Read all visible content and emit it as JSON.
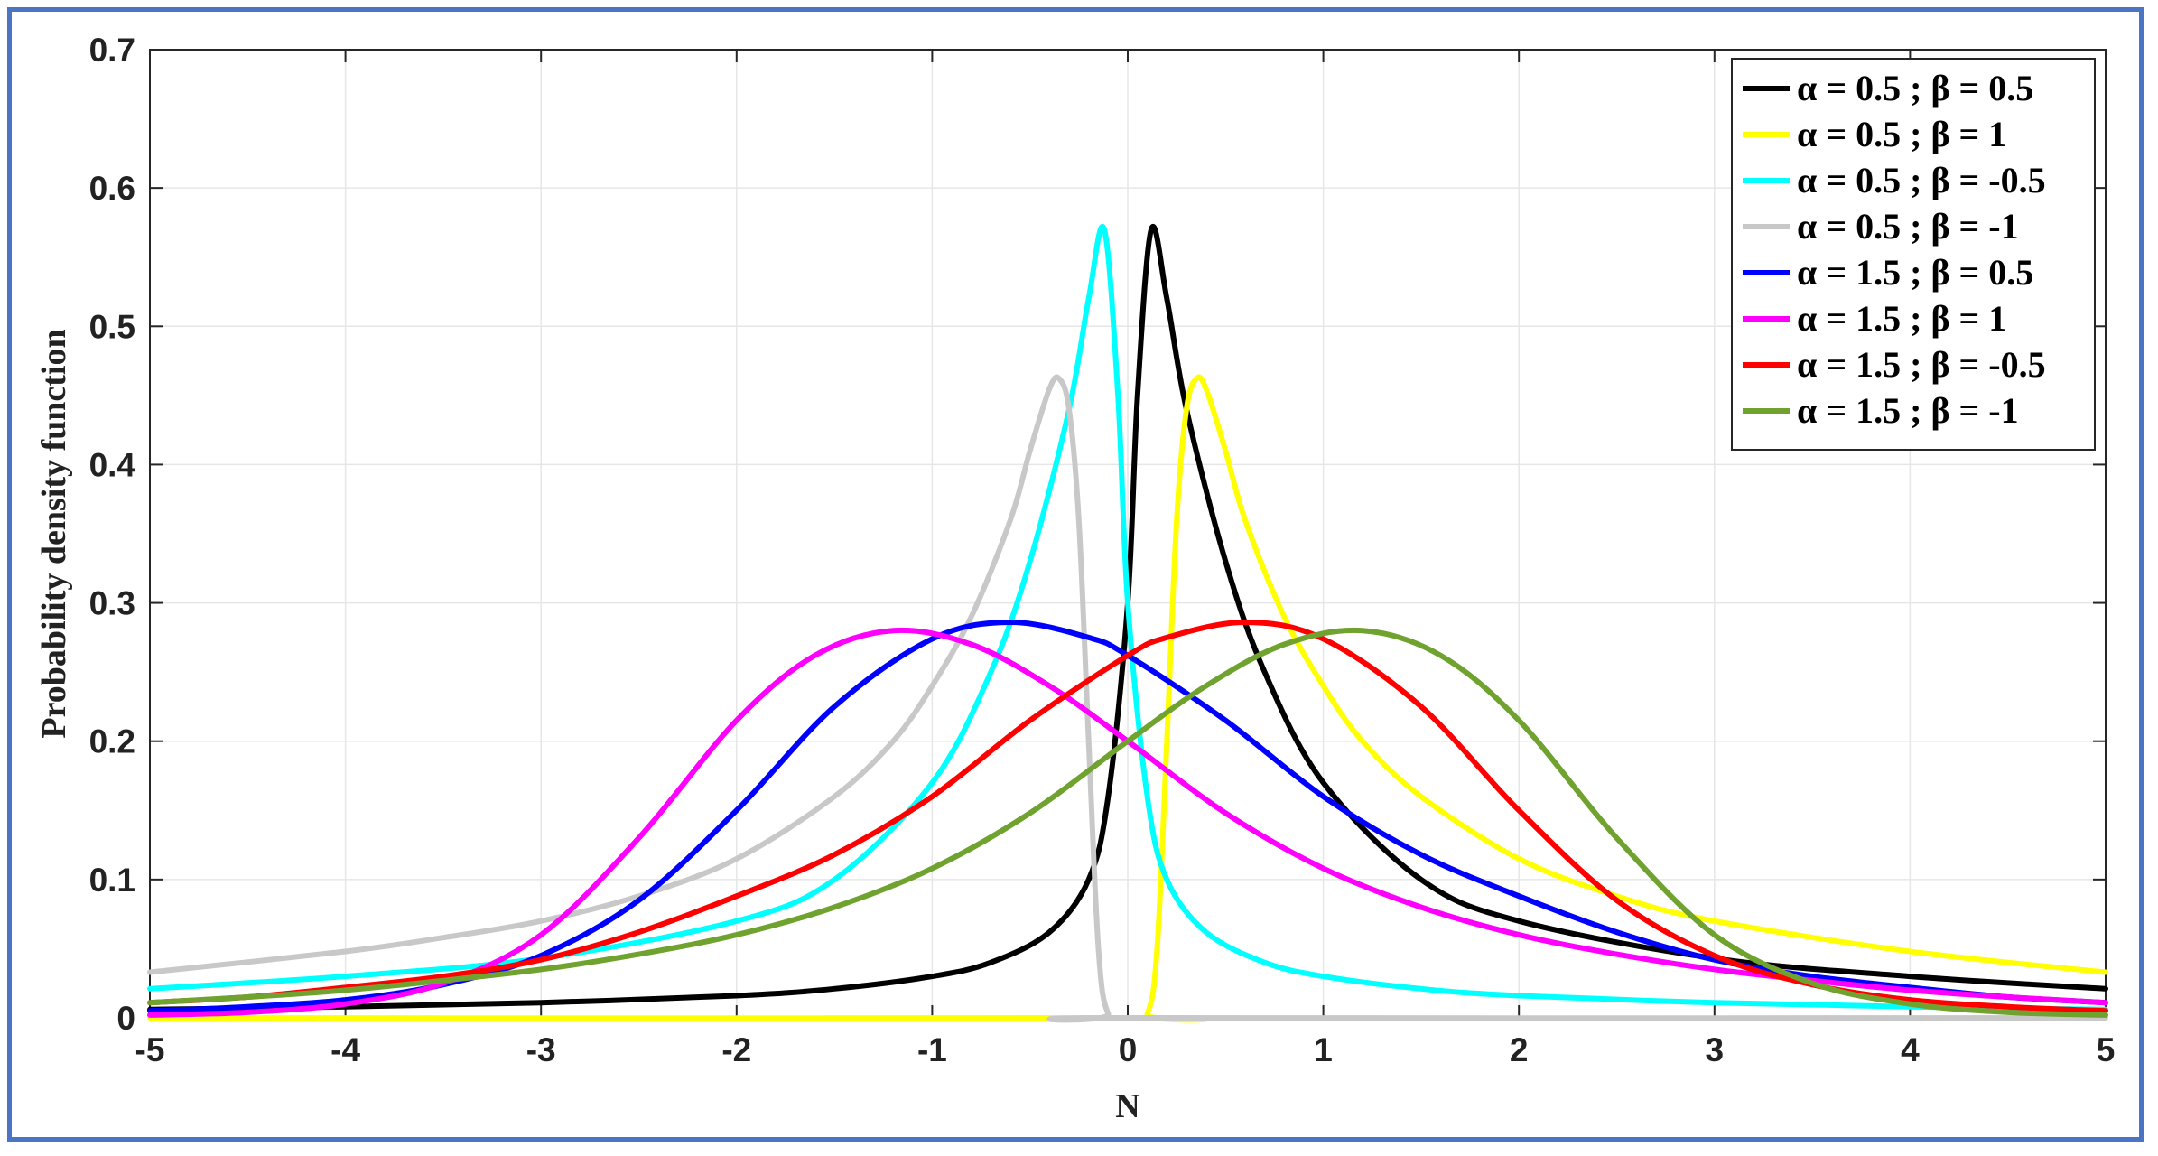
{
  "chart_data": {
    "type": "line",
    "title": "",
    "xlabel": "N",
    "ylabel": "Probability density function",
    "xlim": [
      -5,
      5
    ],
    "ylim": [
      0,
      0.7
    ],
    "xticks": [
      "-5",
      "-4",
      "-3",
      "-2",
      "-1",
      "0",
      "1",
      "2",
      "3",
      "4",
      "5"
    ],
    "yticks": [
      "0",
      "0.1",
      "0.2",
      "0.3",
      "0.4",
      "0.5",
      "0.6",
      "0.7"
    ],
    "grid": true,
    "legend_position": "top-right",
    "series": [
      {
        "name": "α = 0.5 ; β = 0.5",
        "alpha_label": "α = 0.5 ;",
        "beta_label": "β = 0.5",
        "color": "#000000",
        "x": [
          -5,
          -4,
          -3,
          -2,
          -1.5,
          -1,
          -0.7,
          -0.4,
          -0.2,
          -0.1,
          0,
          0.05,
          0.12,
          0.2,
          0.3,
          0.5,
          0.7,
          1,
          1.5,
          2,
          3,
          4,
          5
        ],
        "y": [
          0.006,
          0.008,
          0.011,
          0.016,
          0.021,
          0.03,
          0.04,
          0.062,
          0.1,
          0.16,
          0.3,
          0.45,
          0.57,
          0.52,
          0.44,
          0.33,
          0.25,
          0.17,
          0.1,
          0.07,
          0.043,
          0.03,
          0.021
        ]
      },
      {
        "name": "α = 0.5 ; β = 1",
        "alpha_label": "α = 0.5 ;",
        "beta_label": "β = 1",
        "color": "#ffff00",
        "x": [
          -5,
          0,
          0.1,
          0.15,
          0.2,
          0.25,
          0.3,
          0.35,
          0.4,
          0.5,
          0.6,
          0.8,
          1,
          1.2,
          1.5,
          2,
          2.5,
          3,
          4,
          5
        ],
        "y": [
          0,
          0,
          0.003,
          0.05,
          0.2,
          0.36,
          0.44,
          0.462,
          0.455,
          0.41,
          0.36,
          0.29,
          0.24,
          0.2,
          0.16,
          0.115,
          0.088,
          0.07,
          0.048,
          0.033
        ]
      },
      {
        "name": "α = 0.5 ; β = -0.5",
        "alpha_label": "α = 0.5 ;",
        "beta_label": "β = -0.5",
        "color": "#00ffff",
        "x": [
          -5,
          -4,
          -3,
          -2,
          -1.5,
          -1,
          -0.7,
          -0.5,
          -0.3,
          -0.2,
          -0.12,
          -0.05,
          0,
          0.1,
          0.2,
          0.4,
          0.7,
          1,
          1.5,
          2,
          3,
          4,
          5
        ],
        "y": [
          0.021,
          0.03,
          0.043,
          0.07,
          0.1,
          0.17,
          0.25,
          0.33,
          0.44,
          0.52,
          0.57,
          0.45,
          0.3,
          0.16,
          0.1,
          0.062,
          0.04,
          0.03,
          0.021,
          0.016,
          0.011,
          0.008,
          0.006
        ]
      },
      {
        "name": "α = 0.5 ; β = -1",
        "alpha_label": "α = 0.5 ;",
        "beta_label": "β = -1",
        "color": "#c8c8c8",
        "x": [
          -5,
          -4,
          -3.5,
          -3,
          -2.5,
          -2,
          -1.5,
          -1.2,
          -1,
          -0.8,
          -0.6,
          -0.5,
          -0.4,
          -0.35,
          -0.3,
          -0.25,
          -0.2,
          -0.15,
          -0.1,
          0,
          5
        ],
        "y": [
          0.033,
          0.048,
          0.058,
          0.07,
          0.088,
          0.115,
          0.16,
          0.2,
          0.24,
          0.29,
          0.36,
          0.41,
          0.455,
          0.462,
          0.44,
          0.36,
          0.2,
          0.05,
          0.003,
          0,
          0
        ]
      },
      {
        "name": "α = 1.5 ; β = 0.5",
        "alpha_label": "α = 1.5 ;",
        "beta_label": "β = 0.5",
        "color": "#0000ff",
        "x": [
          -5,
          -4.5,
          -4,
          -3.5,
          -3,
          -2.5,
          -2,
          -1.5,
          -1,
          -0.6,
          -0.2,
          0,
          0.5,
          1,
          1.5,
          2,
          2.5,
          3,
          3.5,
          4,
          4.5,
          5
        ],
        "y": [
          0.005,
          0.008,
          0.013,
          0.024,
          0.045,
          0.085,
          0.15,
          0.225,
          0.274,
          0.286,
          0.275,
          0.262,
          0.215,
          0.16,
          0.118,
          0.088,
          0.062,
          0.042,
          0.03,
          0.022,
          0.015,
          0.011
        ]
      },
      {
        "name": "α = 1.5 ; β = 1",
        "alpha_label": "α = 1.5 ;",
        "beta_label": "β = 1",
        "color": "#ff00ff",
        "x": [
          -5,
          -4.5,
          -4,
          -3.5,
          -3,
          -2.5,
          -2,
          -1.6,
          -1.2,
          -0.8,
          -0.4,
          0,
          0.5,
          1,
          1.5,
          2,
          2.5,
          3,
          3.5,
          4,
          4.5,
          5
        ],
        "y": [
          0.002,
          0.004,
          0.01,
          0.025,
          0.06,
          0.13,
          0.215,
          0.262,
          0.28,
          0.27,
          0.24,
          0.2,
          0.148,
          0.108,
          0.08,
          0.06,
          0.046,
          0.035,
          0.027,
          0.02,
          0.015,
          0.011
        ]
      },
      {
        "name": "α = 1.5 ; β = -0.5",
        "alpha_label": "α = 1.5 ;",
        "beta_label": "β = -0.5",
        "color": "#ff0000",
        "x": [
          -5,
          -4.5,
          -4,
          -3.5,
          -3,
          -2.5,
          -2,
          -1.5,
          -1,
          -0.5,
          0,
          0.2,
          0.6,
          1,
          1.5,
          2,
          2.5,
          3,
          3.5,
          4,
          4.5,
          5
        ],
        "y": [
          0.011,
          0.015,
          0.022,
          0.03,
          0.042,
          0.062,
          0.088,
          0.118,
          0.16,
          0.215,
          0.262,
          0.275,
          0.286,
          0.274,
          0.225,
          0.15,
          0.085,
          0.045,
          0.024,
          0.013,
          0.008,
          0.005
        ]
      },
      {
        "name": "α = 1.5 ; β = -1",
        "alpha_label": "α = 1.5 ;",
        "beta_label": "β = -1",
        "color": "#6fa22e",
        "x": [
          -5,
          -4.5,
          -4,
          -3.5,
          -3,
          -2.5,
          -2,
          -1.5,
          -1,
          -0.5,
          0,
          0.4,
          0.8,
          1.2,
          1.6,
          2,
          2.5,
          3,
          3.5,
          4,
          4.5,
          5
        ],
        "y": [
          0.011,
          0.015,
          0.02,
          0.027,
          0.035,
          0.046,
          0.06,
          0.08,
          0.108,
          0.148,
          0.2,
          0.24,
          0.27,
          0.28,
          0.262,
          0.215,
          0.13,
          0.06,
          0.025,
          0.01,
          0.004,
          0.002
        ]
      }
    ]
  }
}
